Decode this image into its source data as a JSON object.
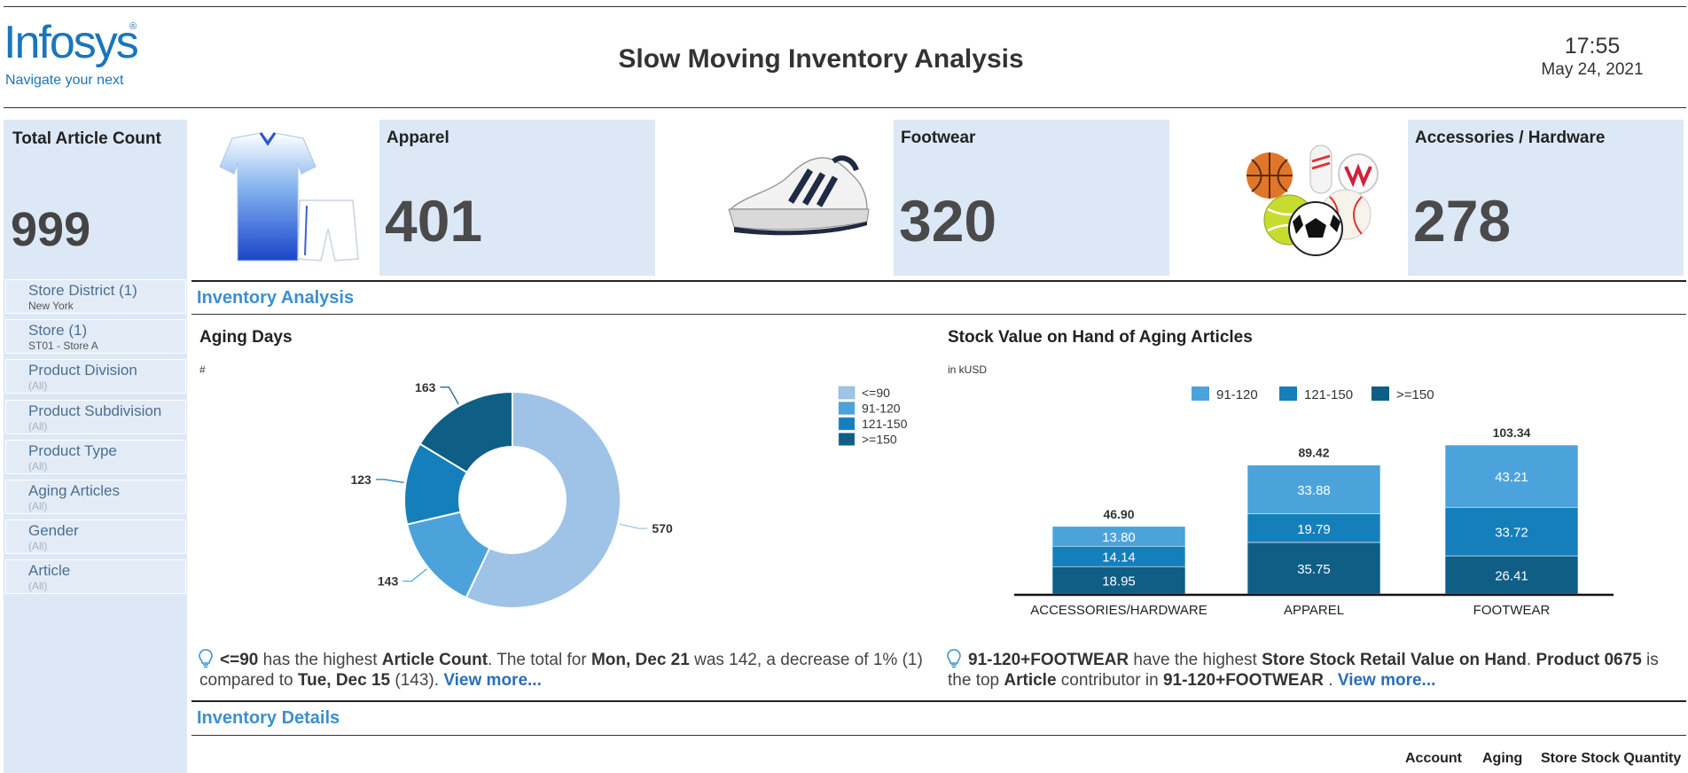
{
  "header": {
    "logo_word": "Infosys",
    "logo_reg": "®",
    "logo_tagline": "Navigate your next",
    "title": "Slow Moving Inventory Analysis",
    "time": "17:55",
    "date": "May 24, 2021"
  },
  "total": {
    "label": "Total Article Count",
    "value": "999"
  },
  "filters": [
    {
      "label": "Store District (1)",
      "value": "New York"
    },
    {
      "label": "Store (1)",
      "value": "ST01 - Store A"
    },
    {
      "label": "Product Division",
      "value": "(All)"
    },
    {
      "label": "Product Subdivision",
      "value": "(All)"
    },
    {
      "label": "Product Type",
      "value": "(All)"
    },
    {
      "label": "Aging Articles",
      "value": "(All)"
    },
    {
      "label": "Gender",
      "value": "(All)"
    },
    {
      "label": "Article",
      "value": "(All)"
    }
  ],
  "categories": [
    {
      "title": "Apparel",
      "value": "401",
      "image": "apparel-jersey-image"
    },
    {
      "title": "Footwear",
      "value": "320",
      "image": "sneaker-image"
    },
    {
      "title": "Accessories / Hardware",
      "value": "278",
      "image": "sports-balls-image"
    }
  ],
  "sections": {
    "analysis": "Inventory Analysis",
    "details": "Inventory Details"
  },
  "aging_chart": {
    "title": "Aging Days",
    "unit": "#"
  },
  "stock_chart": {
    "title": "Stock Value on Hand of Aging Articles",
    "unit": "in kUSD"
  },
  "chart_data": [
    {
      "type": "pie",
      "title": "Aging Days",
      "unit": "#",
      "donut": true,
      "legend_position": "right",
      "categories": [
        "<=90",
        "91-120",
        "121-150",
        ">=150"
      ],
      "values": [
        570,
        143,
        123,
        163
      ],
      "colors": [
        "#9fc3e6",
        "#4ca3dc",
        "#157fbb",
        "#0e5e86"
      ]
    },
    {
      "type": "bar",
      "stacked": true,
      "title": "Stock Value on Hand of Aging Articles",
      "unit": "in kUSD",
      "legend_position": "top",
      "categories": [
        "ACCESSORIES/HARDWARE",
        "APPAREL",
        "FOOTWEAR"
      ],
      "series": [
        {
          "name": ">=150",
          "values": [
            18.95,
            35.75,
            26.41
          ],
          "color": "#0e5e86"
        },
        {
          "name": "121-150",
          "values": [
            14.14,
            19.79,
            33.72
          ],
          "color": "#157fbb"
        },
        {
          "name": "91-120",
          "values": [
            13.8,
            33.88,
            43.21
          ],
          "color": "#4ca3dc"
        }
      ],
      "totals": [
        "46.90",
        "89.42",
        "103.34"
      ],
      "legend_order": [
        "91-120",
        "121-150",
        ">=150"
      ],
      "ylim": [
        0,
        103.34
      ]
    }
  ],
  "insights": {
    "aging": {
      "p1": "<=90",
      "p2": " has the highest ",
      "p3": "Article Count",
      "p4": ". The total for ",
      "p5": "Mon, Dec 21",
      "p6": " was 142, a decrease of 1% (1) compared to ",
      "p7": "Tue, Dec 15",
      "p8": " (143). ",
      "link": "View more..."
    },
    "stock": {
      "p1": "91-120+FOOTWEAR",
      "p2": " have the highest ",
      "p3": "Store Stock Retail Value on Hand",
      "p4": ". ",
      "p5": "Product 0675",
      "p6": " is the top ",
      "p7": "Article",
      "p8": " contributor in ",
      "p9": "91-120+FOOTWEAR",
      "p10": " . ",
      "link": "View more..."
    }
  },
  "details_columns": [
    "Account",
    "Aging",
    "Store Stock Quantity"
  ],
  "colors": {
    "accent": "#3b8fd1",
    "card_bg": "#dce8f5",
    "brand": "#1b75bb"
  }
}
